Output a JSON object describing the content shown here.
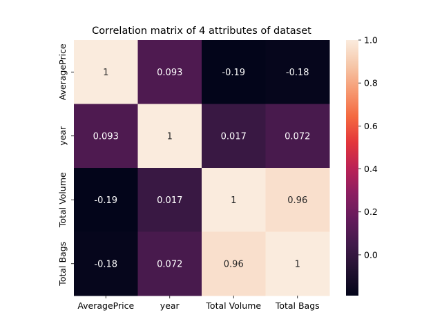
{
  "chart_data": {
    "type": "heatmap",
    "title": "Correlation matrix of 4 attributes of dataset",
    "x_labels": [
      "AveragePrice",
      "year",
      "Total Volume",
      "Total Bags"
    ],
    "y_labels": [
      "AveragePrice",
      "year",
      "Total Volume",
      "Total Bags"
    ],
    "values": [
      [
        1,
        0.093,
        -0.19,
        -0.18
      ],
      [
        0.093,
        1,
        0.017,
        0.072
      ],
      [
        -0.19,
        0.017,
        1,
        0.96
      ],
      [
        -0.18,
        0.072,
        0.96,
        1
      ]
    ],
    "annotations": [
      [
        "1",
        "0.093",
        "-0.19",
        "-0.18"
      ],
      [
        "0.093",
        "1",
        "0.017",
        "0.072"
      ],
      [
        "-0.19",
        "0.017",
        "1",
        "0.96"
      ],
      [
        "-0.18",
        "0.072",
        "0.96",
        "1"
      ]
    ],
    "colorbar": {
      "colormap": "rocket",
      "vmin": -0.19,
      "vmax": 1.0,
      "ticks": [
        "0.0",
        "0.2",
        "0.4",
        "0.6",
        "0.8",
        "1.0"
      ]
    }
  }
}
